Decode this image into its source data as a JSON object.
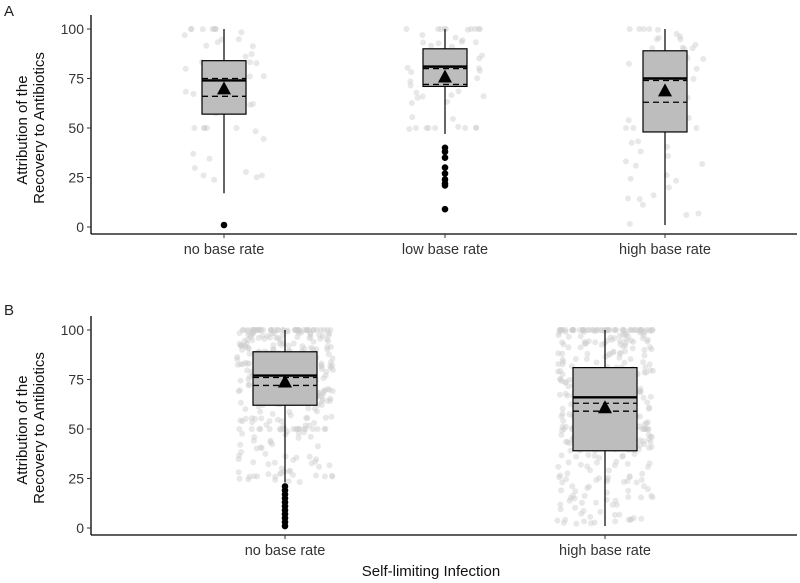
{
  "chart_data": [
    {
      "type": "box",
      "panel_label": "A",
      "xlabel": "",
      "ylabel": [
        "Attribution of the",
        "Recovery to Antibiotics"
      ],
      "ylim": [
        0,
        100
      ],
      "yticks": [
        0,
        25,
        50,
        75,
        100
      ],
      "grid": false,
      "categories": [
        "no base rate",
        "low base rate",
        "high base rate"
      ],
      "boxes": [
        {
          "q1": 57,
          "median": 74,
          "q3": 84,
          "whisker_low": 17,
          "whisker_high": 100,
          "mean": 70,
          "ci": [
            66,
            75
          ],
          "outliers": [
            1
          ]
        },
        {
          "q1": 71,
          "median": 81,
          "q3": 90,
          "whisker_low": 47,
          "whisker_high": 100,
          "mean": 76,
          "ci": [
            72,
            80
          ],
          "outliers": [
            9,
            21,
            22,
            24,
            27,
            30,
            35,
            38,
            40
          ]
        },
        {
          "q1": 48,
          "median": 75,
          "q3": 89,
          "whisker_low": 1,
          "whisker_high": 100,
          "mean": 69,
          "ci": [
            63,
            74
          ],
          "outliers": []
        }
      ],
      "box_color": "#bdbdbd",
      "point_color": "#cccccc"
    },
    {
      "type": "box",
      "panel_label": "B",
      "xlabel": "Self-limiting Infection",
      "ylabel": [
        "Attribution of the",
        "Recovery to Antibiotics"
      ],
      "ylim": [
        0,
        100
      ],
      "yticks": [
        0,
        25,
        50,
        75,
        100
      ],
      "grid": false,
      "categories": [
        "no base rate",
        "high base rate"
      ],
      "boxes": [
        {
          "q1": 62,
          "median": 77,
          "q3": 89,
          "whisker_low": 23,
          "whisker_high": 100,
          "mean": 74,
          "ci": [
            72,
            76
          ],
          "outliers": [
            1,
            3,
            5,
            7,
            9,
            11,
            13,
            15,
            17,
            19,
            21
          ]
        },
        {
          "q1": 39,
          "median": 66,
          "q3": 81,
          "whisker_low": 1,
          "whisker_high": 100,
          "mean": 61,
          "ci": [
            59,
            63
          ],
          "outliers": []
        }
      ],
      "box_color": "#bdbdbd",
      "point_color": "#cccccc"
    }
  ]
}
